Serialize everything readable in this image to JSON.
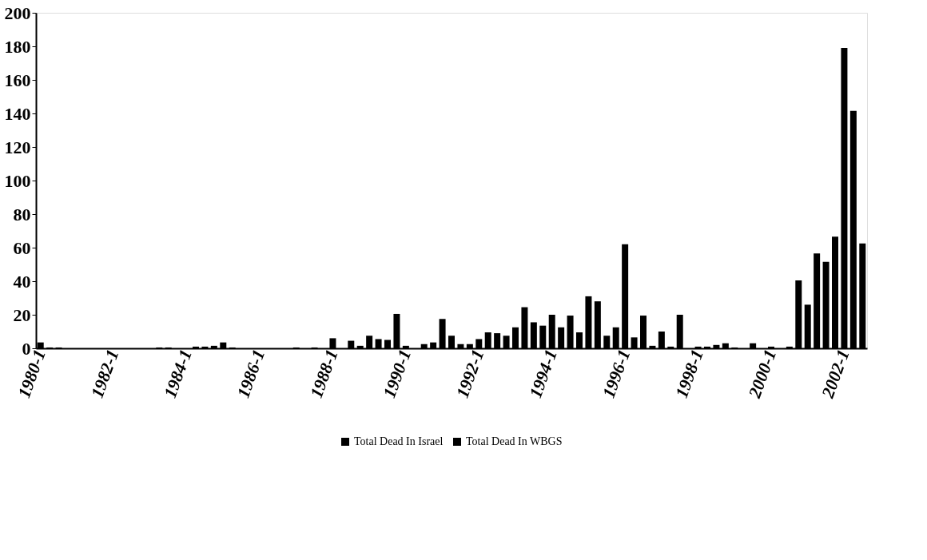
{
  "chart_data": {
    "type": "bar",
    "categories": [
      "1980-1",
      null,
      null,
      null,
      null,
      null,
      null,
      null,
      "1982-1",
      null,
      null,
      null,
      null,
      null,
      null,
      null,
      "1984-1",
      null,
      null,
      null,
      null,
      null,
      null,
      null,
      "1986-1",
      null,
      null,
      null,
      null,
      null,
      null,
      null,
      "1988-1",
      null,
      null,
      null,
      null,
      null,
      null,
      null,
      "1990-1",
      null,
      null,
      null,
      null,
      null,
      null,
      null,
      "1992-1",
      null,
      null,
      null,
      null,
      null,
      null,
      null,
      "1994-1",
      null,
      null,
      null,
      null,
      null,
      null,
      null,
      "1996-1",
      null,
      null,
      null,
      null,
      null,
      null,
      null,
      "1998-1",
      null,
      null,
      null,
      null,
      null,
      null,
      null,
      "2000-1",
      null,
      null,
      null,
      null,
      null,
      null,
      null,
      "2002-1",
      null,
      null
    ],
    "series": [
      {
        "name": "Total Dead In Israel",
        "color": "#000000",
        "values": [
          3.5,
          0.5,
          0.5,
          null,
          null,
          null,
          null,
          null,
          null,
          null,
          null,
          null,
          null,
          0.5,
          0.5,
          null,
          null,
          1,
          1,
          1.5,
          3.5,
          0.5,
          null,
          null,
          null,
          null,
          null,
          null,
          0.5,
          null,
          0.5,
          null,
          6,
          null,
          4.5,
          1.5,
          7.5,
          5.5,
          5,
          20.5,
          1.5,
          null,
          2.5,
          3.5,
          17.5,
          7.5,
          2.5,
          2.5,
          5.5,
          9.5,
          9,
          7.5,
          12.5,
          24.5,
          15.5,
          13.5,
          20,
          12.5,
          19.5,
          9.5,
          31,
          28,
          7.5,
          12.5,
          62,
          6.5,
          19.5,
          1.5,
          10,
          1,
          20,
          null,
          1,
          1,
          2,
          3,
          0.5,
          null,
          3,
          null,
          1,
          null,
          1,
          40.5,
          26,
          56.5,
          51.5,
          66.5,
          179,
          141.5,
          62.5
        ]
      },
      {
        "name": "Total Dead In WBGS",
        "color": "#000000",
        "values": [
          null,
          null,
          null,
          null,
          null,
          null,
          null,
          null,
          null,
          null,
          null,
          null,
          null,
          null,
          null,
          null,
          null,
          null,
          null,
          null,
          null,
          null,
          null,
          null,
          null,
          null,
          null,
          null,
          null,
          null,
          null,
          null,
          null,
          null,
          null,
          null,
          null,
          null,
          null,
          null,
          null,
          null,
          null,
          null,
          null,
          null,
          null,
          null,
          null,
          null,
          null,
          null,
          null,
          null,
          null,
          null,
          null,
          null,
          null,
          null,
          null,
          null,
          null,
          null,
          null,
          null,
          null,
          null,
          null,
          null,
          null,
          null,
          null,
          null,
          null,
          null,
          null,
          null,
          null,
          null,
          null,
          null,
          null,
          null,
          null,
          null,
          null,
          null,
          null,
          null,
          null
        ]
      }
    ],
    "ylim": [
      0,
      200
    ],
    "yticks": [
      0,
      20,
      40,
      60,
      80,
      100,
      120,
      140,
      160,
      180,
      200
    ],
    "legend": "bottom"
  }
}
